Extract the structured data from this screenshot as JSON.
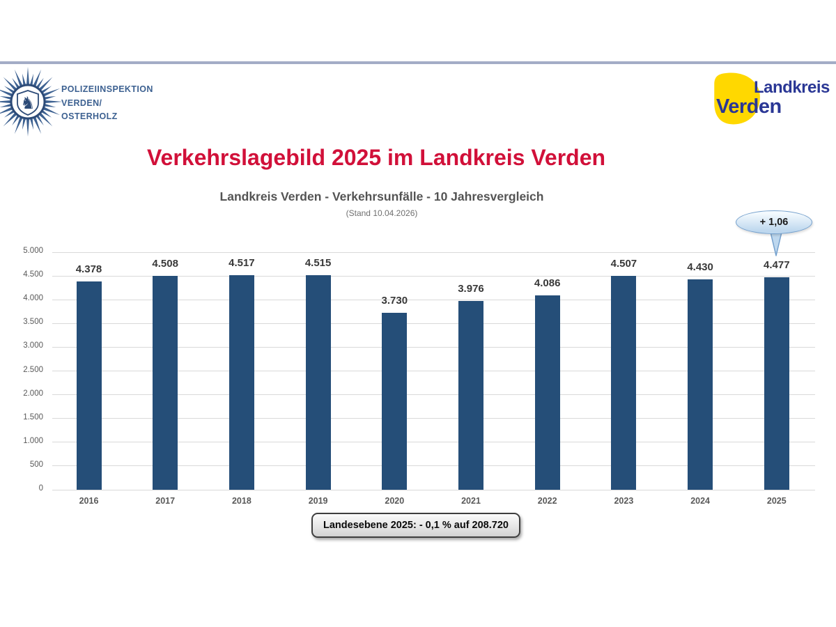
{
  "title": "Verkehrslagebild 2025 im Landkreis Verden",
  "header": {
    "police": {
      "line1": "POLIZEIINSPEKTION",
      "line2": "VERDEN/",
      "line3": "OSTERHOLZ"
    },
    "landkreis_logo": {
      "word1": "Landkreis",
      "word2": "Verden"
    }
  },
  "chart_data": {
    "type": "bar",
    "title": "Landkreis Verden - Verkehrsunfälle - 10 Jahresvergleich",
    "subtitle": "(Stand 10.04.2026)",
    "categories": [
      "2016",
      "2017",
      "2018",
      "2019",
      "2020",
      "2021",
      "2022",
      "2023",
      "2024",
      "2025"
    ],
    "values": [
      4378,
      4508,
      4517,
      4515,
      3730,
      3976,
      4086,
      4507,
      4430,
      4477
    ],
    "labels": [
      "4.378",
      "4.508",
      "4.517",
      "4.515",
      "3.730",
      "3.976",
      "4.086",
      "4.507",
      "4.430",
      "4.477"
    ],
    "xlabel": "",
    "ylabel": "",
    "ylim": [
      0,
      5000
    ],
    "ytick_step": 500,
    "ytick_labels": [
      "0",
      "500",
      "1.000",
      "1.500",
      "2.000",
      "2.500",
      "3.000",
      "3.500",
      "4.000",
      "4.500",
      "5.000"
    ],
    "grid": true,
    "legend": false,
    "callout": {
      "text": "+ 1,06",
      "target_category": "2025"
    },
    "footer_note": "Landesebene 2025: - 0,1 % auf 208.720"
  },
  "colors": {
    "accent_red": "#D11039",
    "bar_blue": "#254E78",
    "grid_gray": "#D9D9D9",
    "logo_yellow": "#FFD800",
    "logo_blue": "#2A3795",
    "police_blue": "#3D6191",
    "police_dark": "#2C4A77",
    "callout_border": "#74A0CD",
    "callout_fill": "#BDD7EE",
    "top_rule": "#A3ACC6"
  }
}
